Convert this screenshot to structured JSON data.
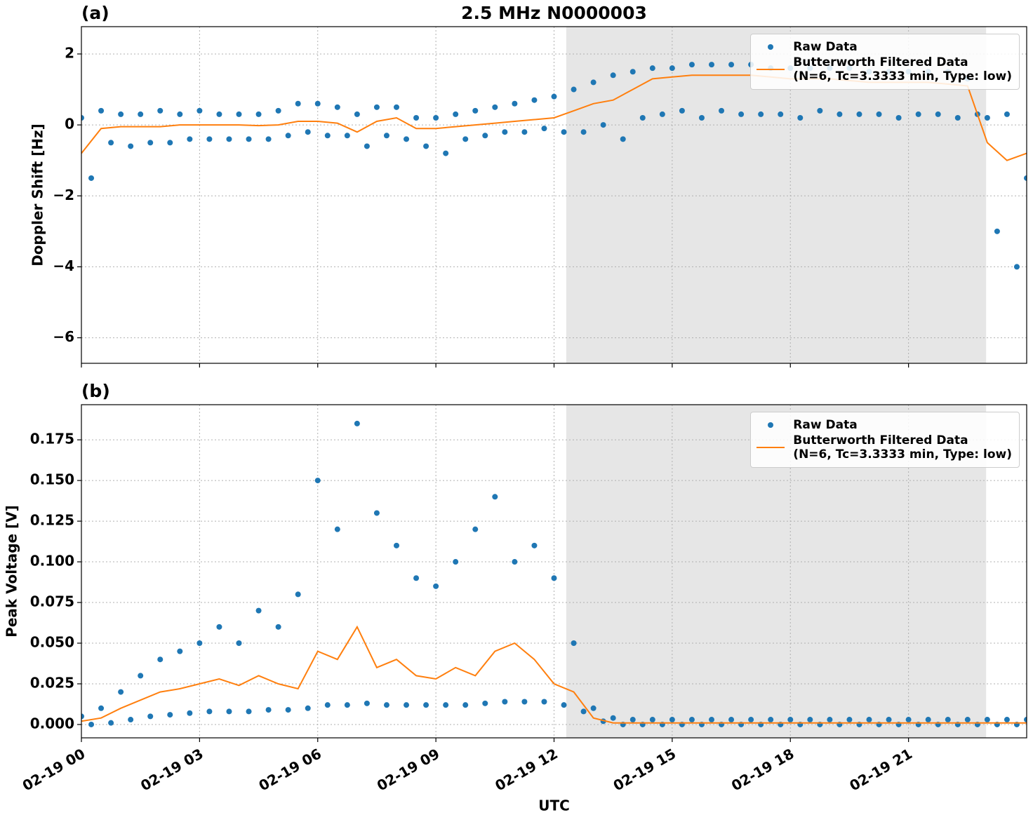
{
  "chart_data": [
    {
      "type": "scatter",
      "title": "2.5 MHz N0000003",
      "panel_label": "(a)",
      "ylabel": "Doppler Shift [Hz]",
      "xlim": [
        0,
        24
      ],
      "xticks": [
        0,
        3,
        6,
        9,
        12,
        15,
        18,
        21
      ],
      "ylim": [
        -6.72,
        2.77
      ],
      "yticks": [
        {
          "value": -6,
          "label": "−6"
        },
        {
          "value": -4,
          "label": "−4"
        },
        {
          "value": -2,
          "label": "−2"
        },
        0,
        2
      ],
      "grid": true,
      "legend": "upper right",
      "shaded_span": [
        12.31,
        22.97
      ],
      "series": [
        {
          "name": "Raw Data",
          "kind": "scatter",
          "color": "#1f77b4",
          "x": [
            0,
            0.25,
            0.5,
            0.75,
            1,
            1.25,
            1.5,
            1.75,
            2,
            2.25,
            2.5,
            2.75,
            3,
            3.25,
            3.5,
            3.75,
            4,
            4.25,
            4.5,
            4.75,
            5,
            5.25,
            5.5,
            5.75,
            6,
            6.25,
            6.5,
            6.75,
            7,
            7.25,
            7.5,
            7.75,
            8,
            8.25,
            8.5,
            8.75,
            9,
            9.25,
            9.5,
            9.75,
            10,
            10.25,
            10.5,
            10.75,
            11,
            11.25,
            11.5,
            11.75,
            12,
            12.25,
            12.5,
            12.75,
            13,
            13.25,
            13.5,
            13.75,
            14,
            14.25,
            14.5,
            14.75,
            15,
            15.25,
            15.5,
            15.75,
            16,
            16.25,
            16.5,
            16.75,
            17,
            17.25,
            17.5,
            17.75,
            18,
            18.25,
            18.5,
            18.75,
            19,
            19.25,
            19.5,
            19.75,
            20,
            20.25,
            20.5,
            20.75,
            21,
            21.25,
            21.5,
            21.75,
            22,
            22.25,
            22.5,
            22.75,
            23,
            23.25,
            23.5,
            23.75,
            24
          ],
          "values": [
            0.2,
            -1.5,
            0.4,
            -0.5,
            0.3,
            -0.6,
            0.3,
            -0.5,
            0.4,
            -0.5,
            0.3,
            -0.4,
            0.4,
            -0.4,
            0.3,
            -0.4,
            0.3,
            -0.4,
            0.3,
            -0.4,
            0.4,
            -0.3,
            0.6,
            -0.2,
            0.6,
            -0.3,
            0.5,
            -0.3,
            0.3,
            -0.6,
            0.5,
            -0.3,
            0.5,
            -0.4,
            0.2,
            -0.6,
            0.2,
            -0.8,
            0.3,
            -0.4,
            0.4,
            -0.3,
            0.5,
            -0.2,
            0.6,
            -0.2,
            0.7,
            -0.1,
            0.8,
            -0.2,
            1.0,
            -0.2,
            1.2,
            0,
            1.4,
            -0.4,
            1.5,
            0.2,
            1.6,
            0.3,
            1.6,
            0.4,
            1.7,
            0.2,
            1.7,
            0.4,
            1.7,
            0.3,
            1.7,
            0.3,
            1.6,
            0.3,
            1.6,
            0.2,
            1.6,
            0.4,
            1.6,
            0.3,
            1.6,
            0.3,
            1.5,
            0.3,
            1.5,
            0.2,
            1.5,
            0.3,
            1.5,
            0.3,
            1.5,
            0.2,
            1.3,
            0.3,
            0.2,
            -3.0,
            0.3,
            -4.0,
            -1.5
          ]
        },
        {
          "name": "Butterworth Filtered Data\n(N=6, Tc=3.3333 min, Type: low)",
          "kind": "line",
          "color": "#ff7f0e",
          "x": [
            0,
            0.5,
            1,
            1.5,
            2,
            2.5,
            3,
            3.5,
            4,
            4.5,
            5,
            5.5,
            6,
            6.5,
            7,
            7.5,
            8,
            8.5,
            9,
            9.5,
            10,
            10.5,
            11,
            11.5,
            12,
            12.5,
            13,
            13.5,
            14,
            14.5,
            15,
            15.5,
            16,
            16.5,
            17,
            17.5,
            18,
            18.5,
            19,
            19.5,
            20,
            20.5,
            21,
            21.5,
            22,
            22.5,
            23,
            23.5,
            24
          ],
          "values": [
            -0.8,
            -0.1,
            -0.05,
            -0.05,
            -0.05,
            0,
            0,
            0,
            0,
            -0.02,
            0,
            0.1,
            0.1,
            0.05,
            -0.2,
            0.1,
            0.2,
            -0.1,
            -0.1,
            -0.05,
            0,
            0.05,
            0.1,
            0.15,
            0.2,
            0.4,
            0.6,
            0.7,
            1.0,
            1.3,
            1.35,
            1.4,
            1.4,
            1.4,
            1.4,
            1.35,
            1.3,
            1.3,
            1.3,
            1.25,
            1.2,
            1.2,
            1.2,
            1.2,
            1.15,
            1.1,
            -0.5,
            -1.0,
            -0.8
          ]
        }
      ]
    },
    {
      "type": "scatter",
      "panel_label": "(b)",
      "ylabel": "Peak Voltage [V]",
      "xlabel": "UTC",
      "xlim": [
        0,
        24
      ],
      "xticks": [
        {
          "value": 0,
          "label": "02-19 00"
        },
        {
          "value": 3,
          "label": "02-19 03"
        },
        {
          "value": 6,
          "label": "02-19 06"
        },
        {
          "value": 9,
          "label": "02-19 09"
        },
        {
          "value": 12,
          "label": "02-19 12"
        },
        {
          "value": 15,
          "label": "02-19 15"
        },
        {
          "value": 18,
          "label": "02-19 18"
        },
        {
          "value": 21,
          "label": "02-19 21"
        }
      ],
      "ylim": [
        -0.0082,
        0.1966
      ],
      "yticks": [
        {
          "value": 0,
          "label": "0.000"
        },
        {
          "value": 0.025,
          "label": "0.025"
        },
        {
          "value": 0.05,
          "label": "0.050"
        },
        {
          "value": 0.075,
          "label": "0.075"
        },
        {
          "value": 0.1,
          "label": "0.100"
        },
        {
          "value": 0.125,
          "label": "0.125"
        },
        {
          "value": 0.15,
          "label": "0.150"
        },
        {
          "value": 0.175,
          "label": "0.175"
        }
      ],
      "grid": true,
      "legend": "upper right",
      "shaded_span": [
        12.31,
        22.97
      ],
      "series": [
        {
          "name": "Raw Data",
          "kind": "scatter",
          "color": "#1f77b4",
          "x": [
            0,
            0.25,
            0.5,
            0.75,
            1,
            1.25,
            1.5,
            1.75,
            2,
            2.25,
            2.5,
            2.75,
            3,
            3.25,
            3.5,
            3.75,
            4,
            4.25,
            4.5,
            4.75,
            5,
            5.25,
            5.5,
            5.75,
            6,
            6.25,
            6.5,
            6.75,
            7,
            7.25,
            7.5,
            7.75,
            8,
            8.25,
            8.5,
            8.75,
            9,
            9.25,
            9.5,
            9.75,
            10,
            10.25,
            10.5,
            10.75,
            11,
            11.25,
            11.5,
            11.75,
            12,
            12.25,
            12.5,
            12.75,
            13,
            13.25,
            13.5,
            13.75,
            14,
            14.25,
            14.5,
            14.75,
            15,
            15.25,
            15.5,
            15.75,
            16,
            16.25,
            16.5,
            16.75,
            17,
            17.25,
            17.5,
            17.75,
            18,
            18.25,
            18.5,
            18.75,
            19,
            19.25,
            19.5,
            19.75,
            20,
            20.25,
            20.5,
            20.75,
            21,
            21.25,
            21.5,
            21.75,
            22,
            22.25,
            22.5,
            22.75,
            23,
            23.25,
            23.5,
            23.75,
            24
          ],
          "values": [
            0.005,
            0.0,
            0.01,
            0.001,
            0.02,
            0.003,
            0.03,
            0.005,
            0.04,
            0.006,
            0.045,
            0.007,
            0.05,
            0.008,
            0.06,
            0.008,
            0.05,
            0.008,
            0.07,
            0.009,
            0.06,
            0.009,
            0.08,
            0.01,
            0.15,
            0.012,
            0.12,
            0.012,
            0.185,
            0.013,
            0.13,
            0.012,
            0.11,
            0.012,
            0.09,
            0.012,
            0.085,
            0.012,
            0.1,
            0.012,
            0.12,
            0.013,
            0.14,
            0.014,
            0.1,
            0.014,
            0.11,
            0.014,
            0.09,
            0.012,
            0.05,
            0.008,
            0.01,
            0.002,
            0.004,
            0.0,
            0.003,
            0.0,
            0.003,
            0.0,
            0.003,
            0.0,
            0.003,
            0.0,
            0.003,
            0.0,
            0.003,
            0.0,
            0.003,
            0.0,
            0.003,
            0.0,
            0.003,
            0.0,
            0.003,
            0.0,
            0.003,
            0.0,
            0.003,
            0.0,
            0.003,
            0.0,
            0.003,
            0.0,
            0.003,
            0.0,
            0.003,
            0.0,
            0.003,
            0.0,
            0.003,
            0.0,
            0.003,
            0.0,
            0.003,
            0.0,
            0.003
          ]
        },
        {
          "name": "Butterworth Filtered Data\n(N=6, Tc=3.3333 min, Type: low)",
          "kind": "line",
          "color": "#ff7f0e",
          "x": [
            0,
            0.5,
            1,
            1.5,
            2,
            2.5,
            3,
            3.5,
            4,
            4.5,
            5,
            5.5,
            6,
            6.5,
            7,
            7.5,
            8,
            8.5,
            9,
            9.5,
            10,
            10.5,
            11,
            11.5,
            12,
            12.5,
            13,
            13.5,
            14,
            14.5,
            15,
            15.5,
            16,
            16.5,
            17,
            17.5,
            18,
            18.5,
            19,
            19.5,
            20,
            20.5,
            21,
            21.5,
            22,
            22.5,
            23,
            23.5,
            24
          ],
          "values": [
            0.002,
            0.004,
            0.01,
            0.015,
            0.02,
            0.022,
            0.025,
            0.028,
            0.024,
            0.03,
            0.025,
            0.022,
            0.045,
            0.04,
            0.06,
            0.035,
            0.04,
            0.03,
            0.028,
            0.035,
            0.03,
            0.045,
            0.05,
            0.04,
            0.025,
            0.02,
            0.004,
            0.001,
            0.001,
            0.001,
            0.001,
            0.001,
            0.001,
            0.001,
            0.001,
            0.001,
            0.001,
            0.001,
            0.001,
            0.001,
            0.001,
            0.001,
            0.001,
            0.001,
            0.001,
            0.001,
            0.001,
            0.001,
            0.001
          ]
        }
      ]
    }
  ]
}
